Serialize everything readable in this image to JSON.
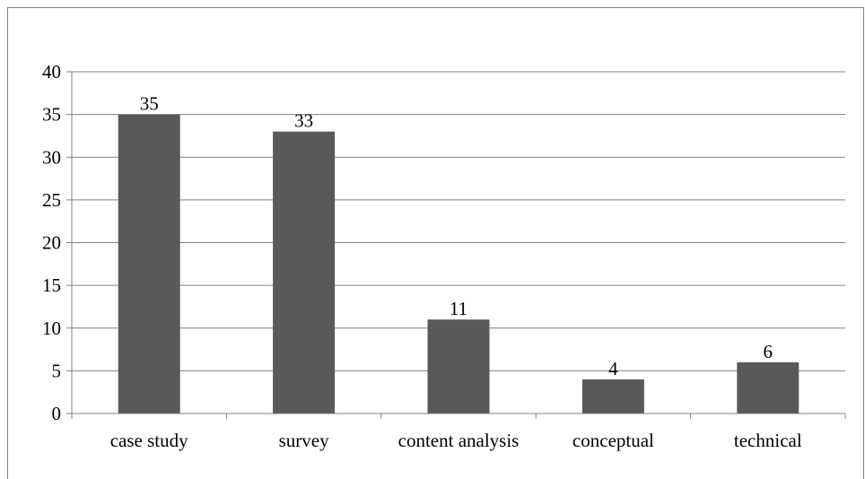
{
  "chart_data": {
    "type": "bar",
    "categories": [
      "case study",
      "survey",
      "content analysis",
      "conceptual",
      "technical"
    ],
    "values": [
      35,
      33,
      11,
      4,
      6
    ],
    "data_labels": [
      "35",
      "33",
      "11",
      "4",
      "6"
    ],
    "yticks": [
      "0",
      "5",
      "10",
      "15",
      "20",
      "25",
      "30",
      "35",
      "40"
    ],
    "ylim": [
      0,
      40
    ],
    "ytick_step": 5,
    "grid": true,
    "legend": "none",
    "title": "",
    "xlabel": "",
    "ylabel": "",
    "colors": {
      "bar": "#595959",
      "grid": "#808080",
      "axis": "#808080",
      "frame": "#808080"
    }
  }
}
